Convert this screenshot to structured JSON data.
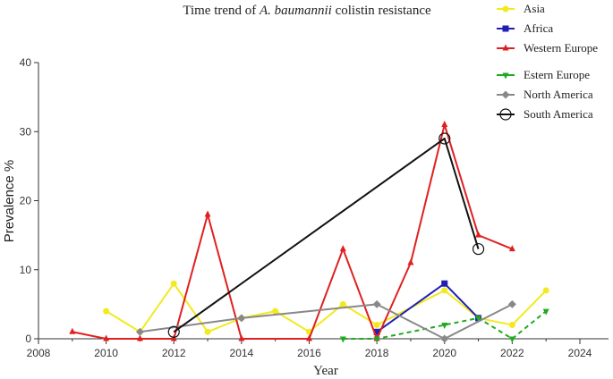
{
  "chart_data": {
    "type": "line",
    "title": {
      "prefix": "Time trend of ",
      "italic": "A. baumannii",
      "suffix": " colistin resistance"
    },
    "xlabel": "Year",
    "ylabel": "Prevalence %",
    "xlim": [
      2008,
      2025
    ],
    "ylim": [
      0,
      40
    ],
    "xticks": [
      2008,
      2010,
      2012,
      2014,
      2016,
      2018,
      2020,
      2022,
      2024
    ],
    "yticks": [
      0,
      10,
      20,
      30,
      40
    ],
    "grid": false,
    "legend_position": "top-right",
    "series": [
      {
        "name": "Asia",
        "color": "#f2ea1e",
        "marker": "circle",
        "points": [
          [
            2010,
            4
          ],
          [
            2011,
            1
          ],
          [
            2012,
            8
          ],
          [
            2013,
            1
          ],
          [
            2014,
            3
          ],
          [
            2015,
            4
          ],
          [
            2016,
            1
          ],
          [
            2017,
            5
          ],
          [
            2018,
            2
          ],
          [
            2020,
            7
          ],
          [
            2021,
            3
          ],
          [
            2022,
            2
          ],
          [
            2023,
            7
          ]
        ]
      },
      {
        "name": "Africa",
        "color": "#1f1fb4",
        "marker": "square",
        "points": [
          [
            2018,
            1
          ],
          [
            2020,
            8
          ],
          [
            2021,
            3
          ]
        ]
      },
      {
        "name": "Western Europe",
        "color": "#e02020",
        "marker": "triangle-up",
        "points": [
          [
            2009,
            1
          ],
          [
            2010,
            0
          ],
          [
            2011,
            0
          ],
          [
            2012,
            0
          ],
          [
            2013,
            18
          ],
          [
            2014,
            0
          ],
          [
            2016,
            0
          ],
          [
            2017,
            13
          ],
          [
            2018,
            0
          ],
          [
            2019,
            11
          ],
          [
            2020,
            31
          ],
          [
            2021,
            15
          ],
          [
            2022,
            13
          ]
        ]
      },
      {
        "name": "Estern Europe",
        "color": "#1faa1f",
        "marker": "triangle-down",
        "dashed": true,
        "points": [
          [
            2017,
            0
          ],
          [
            2018,
            0
          ],
          [
            2020,
            2
          ],
          [
            2021,
            3
          ],
          [
            2022,
            0
          ],
          [
            2023,
            4
          ]
        ]
      },
      {
        "name": "North America",
        "color": "#888888",
        "marker": "diamond",
        "points": [
          [
            2011,
            1
          ],
          [
            2014,
            3
          ],
          [
            2018,
            5
          ],
          [
            2020,
            0
          ],
          [
            2022,
            5
          ]
        ]
      },
      {
        "name": "South America",
        "color": "#111111",
        "marker": "open-circle",
        "points": [
          [
            2012,
            1
          ],
          [
            2020,
            29
          ],
          [
            2021,
            13
          ]
        ]
      }
    ]
  }
}
